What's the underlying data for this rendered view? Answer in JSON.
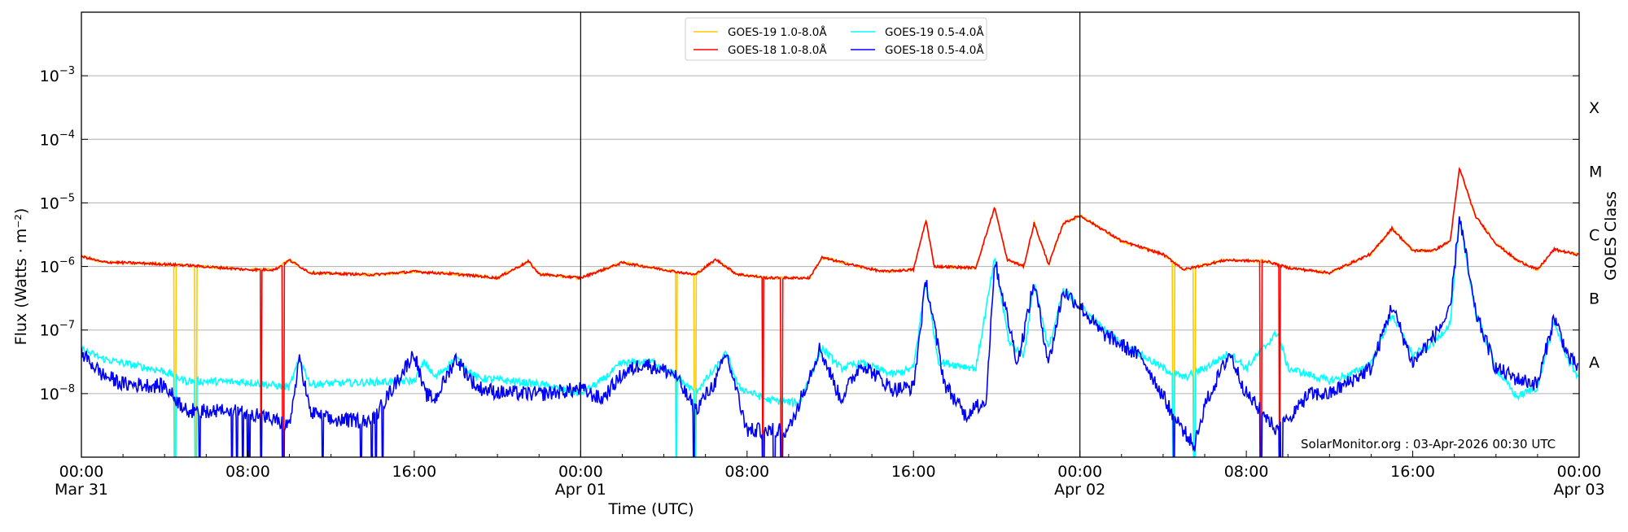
{
  "chart_data": {
    "type": "line",
    "xlabel": "Time (UTC)",
    "ylabel": "Flux (Watts · m⁻²)",
    "ylabel_right": "GOES Class",
    "xlim_hours": [
      0,
      72
    ],
    "ylim": [
      1e-09,
      0.01
    ],
    "yscale": "log",
    "grid": "horizontal",
    "legend_placement": "top-center",
    "x_ticks": [
      {
        "hour": 0,
        "label": "00:00",
        "sublabel": "Mar 31"
      },
      {
        "hour": 8,
        "label": "08:00",
        "sublabel": ""
      },
      {
        "hour": 16,
        "label": "16:00",
        "sublabel": ""
      },
      {
        "hour": 24,
        "label": "00:00",
        "sublabel": "Apr 01"
      },
      {
        "hour": 32,
        "label": "08:00",
        "sublabel": ""
      },
      {
        "hour": 40,
        "label": "16:00",
        "sublabel": ""
      },
      {
        "hour": 48,
        "label": "00:00",
        "sublabel": "Apr 02"
      },
      {
        "hour": 56,
        "label": "08:00",
        "sublabel": ""
      },
      {
        "hour": 64,
        "label": "16:00",
        "sublabel": ""
      },
      {
        "hour": 72,
        "label": "00:00",
        "sublabel": "Apr 03"
      }
    ],
    "y_ticks": [
      {
        "exp": -3,
        "base": "10",
        "sup": "−3"
      },
      {
        "exp": -4,
        "base": "10",
        "sup": "−4"
      },
      {
        "exp": -5,
        "base": "10",
        "sup": "−5"
      },
      {
        "exp": -6,
        "base": "10",
        "sup": "−6"
      },
      {
        "exp": -7,
        "base": "10",
        "sup": "−7"
      },
      {
        "exp": -8,
        "base": "10",
        "sup": "−8"
      }
    ],
    "day_boundaries_hours": [
      24,
      48
    ],
    "goes_classes": [
      {
        "label": "X",
        "log10_center": -3.5
      },
      {
        "label": "M",
        "log10_center": -4.5
      },
      {
        "label": "C",
        "log10_center": -5.5
      },
      {
        "label": "B",
        "log10_center": -6.5
      },
      {
        "label": "A",
        "log10_center": -7.5
      }
    ],
    "annotation": "SolarMonitor.org : 03-Apr-2026 00:30 UTC",
    "series": [
      {
        "name": "GOES-19 1.0-8.0Å",
        "color": "#ffc800",
        "noise": 0.02,
        "ref": "red_points",
        "gaps_hours": [
          [
            4.5,
            5.5
          ],
          [
            28.6,
            29.5
          ],
          [
            52.5,
            53.5
          ]
        ]
      },
      {
        "name": "GOES-19 0.5-4.0Å",
        "color": "#00ffff",
        "noise": 0.06,
        "gaps_hours": [
          [
            4.5,
            5.5
          ],
          [
            28.6,
            29.5
          ],
          [
            52.5,
            53.5
          ]
        ],
        "points_log10": [
          [
            0,
            -7.3
          ],
          [
            1,
            -7.45
          ],
          [
            2,
            -7.52
          ],
          [
            4,
            -7.65
          ],
          [
            5,
            -7.8
          ],
          [
            8,
            -7.82
          ],
          [
            10,
            -7.9
          ],
          [
            10.5,
            -7.44
          ],
          [
            11,
            -7.85
          ],
          [
            14,
            -7.82
          ],
          [
            16,
            -7.8
          ],
          [
            16.5,
            -7.5
          ],
          [
            17,
            -7.75
          ],
          [
            18,
            -7.44
          ],
          [
            19,
            -7.75
          ],
          [
            22,
            -7.85
          ],
          [
            24,
            -8.0
          ],
          [
            25,
            -7.8
          ],
          [
            26,
            -7.52
          ],
          [
            27.5,
            -7.5
          ],
          [
            28.5,
            -7.7
          ],
          [
            29.5,
            -7.98
          ],
          [
            30.5,
            -7.6
          ],
          [
            31,
            -7.36
          ],
          [
            31.6,
            -7.9
          ],
          [
            33,
            -8.1
          ],
          [
            34.5,
            -8.15
          ],
          [
            35.6,
            -7.28
          ],
          [
            36.5,
            -7.6
          ],
          [
            37.5,
            -7.52
          ],
          [
            39,
            -7.7
          ],
          [
            40,
            -7.6
          ],
          [
            40.6,
            -6.22
          ],
          [
            41.2,
            -7.5
          ],
          [
            43,
            -7.6
          ],
          [
            43.9,
            -5.89
          ],
          [
            44.6,
            -7.2
          ],
          [
            45.3,
            -7.4
          ],
          [
            45.8,
            -6.25
          ],
          [
            46.5,
            -7.3
          ],
          [
            47.2,
            -6.38
          ],
          [
            48,
            -6.62
          ],
          [
            49,
            -6.95
          ],
          [
            50,
            -7.2
          ],
          [
            51,
            -7.4
          ],
          [
            52,
            -7.6
          ],
          [
            53,
            -7.75
          ],
          [
            54,
            -7.6
          ],
          [
            55.2,
            -7.36
          ],
          [
            56,
            -7.6
          ],
          [
            57.5,
            -7.03
          ],
          [
            58,
            -7.6
          ],
          [
            60,
            -7.8
          ],
          [
            61,
            -7.7
          ],
          [
            62,
            -7.52
          ],
          [
            63,
            -6.75
          ],
          [
            64,
            -7.4
          ],
          [
            65,
            -7.2
          ],
          [
            65.8,
            -6.9
          ],
          [
            66.25,
            -5.24
          ],
          [
            67,
            -6.7
          ],
          [
            68,
            -7.6
          ],
          [
            69,
            -8.05
          ],
          [
            70,
            -7.9
          ],
          [
            70.8,
            -6.87
          ],
          [
            71.5,
            -7.5
          ],
          [
            72,
            -7.75
          ]
        ]
      },
      {
        "name": "GOES-18 1.0-8.0Å",
        "color": "#ff0000",
        "noise": 0.02,
        "gaps_hours": [
          [
            8.64,
            9.7
          ],
          [
            32.75,
            33.65
          ],
          [
            56.7,
            57.6
          ]
        ],
        "points_log10": [
          [
            0,
            -5.84
          ],
          [
            1,
            -5.93
          ],
          [
            3,
            -5.95
          ],
          [
            5,
            -5.98
          ],
          [
            8,
            -6.05
          ],
          [
            9.3,
            -6.05
          ],
          [
            10,
            -5.9
          ],
          [
            11,
            -6.1
          ],
          [
            14,
            -6.13
          ],
          [
            16,
            -6.08
          ],
          [
            18,
            -6.12
          ],
          [
            20,
            -6.18
          ],
          [
            21.5,
            -5.92
          ],
          [
            22,
            -6.12
          ],
          [
            24,
            -6.18
          ],
          [
            26,
            -5.94
          ],
          [
            28,
            -6.05
          ],
          [
            29.5,
            -6.13
          ],
          [
            30.5,
            -5.89
          ],
          [
            31.5,
            -6.12
          ],
          [
            33,
            -6.18
          ],
          [
            35,
            -6.18
          ],
          [
            35.6,
            -5.86
          ],
          [
            37,
            -5.97
          ],
          [
            38.5,
            -6.08
          ],
          [
            40,
            -6.05
          ],
          [
            40.6,
            -5.27
          ],
          [
            41,
            -6.0
          ],
          [
            43,
            -6.02
          ],
          [
            43.9,
            -5.07
          ],
          [
            44.5,
            -5.89
          ],
          [
            45.3,
            -6.0
          ],
          [
            45.8,
            -5.32
          ],
          [
            46.5,
            -5.97
          ],
          [
            47.2,
            -5.32
          ],
          [
            48,
            -5.2
          ],
          [
            49,
            -5.4
          ],
          [
            50,
            -5.6
          ],
          [
            52,
            -5.81
          ],
          [
            53,
            -6.05
          ],
          [
            55,
            -5.9
          ],
          [
            57,
            -5.92
          ],
          [
            58,
            -6.02
          ],
          [
            60,
            -6.1
          ],
          [
            62,
            -5.8
          ],
          [
            63,
            -5.4
          ],
          [
            64,
            -5.75
          ],
          [
            65,
            -5.75
          ],
          [
            65.8,
            -5.6
          ],
          [
            66.25,
            -4.45
          ],
          [
            67,
            -5.2
          ],
          [
            68,
            -5.64
          ],
          [
            69,
            -5.9
          ],
          [
            70,
            -6.05
          ],
          [
            70.8,
            -5.73
          ],
          [
            72,
            -5.82
          ]
        ]
      },
      {
        "name": "GOES-18 0.5-4.0Å",
        "color": "#0000ff",
        "noise": 0.12,
        "gaps_hours": [
          [
            8.64,
            9.7
          ],
          [
            32.75,
            33.65
          ],
          [
            56.7,
            57.6
          ]
        ],
        "points_log10": [
          [
            0,
            -7.36
          ],
          [
            1,
            -7.7
          ],
          [
            2,
            -7.85
          ],
          [
            4,
            -7.88
          ],
          [
            5,
            -8.26
          ],
          [
            8,
            -8.3
          ],
          [
            8.5,
            -8.34
          ],
          [
            10,
            -8.5
          ],
          [
            10.5,
            -7.44
          ],
          [
            11,
            -8.3
          ],
          [
            12,
            -8.42
          ],
          [
            14,
            -8.42
          ],
          [
            16,
            -7.36
          ],
          [
            16.5,
            -8.0
          ],
          [
            17,
            -8.09
          ],
          [
            18,
            -7.44
          ],
          [
            19,
            -7.9
          ],
          [
            20,
            -7.98
          ],
          [
            22,
            -8.01
          ],
          [
            24,
            -7.93
          ],
          [
            25,
            -8.09
          ],
          [
            26,
            -7.7
          ],
          [
            27,
            -7.52
          ],
          [
            28.5,
            -7.69
          ],
          [
            29.5,
            -8.26
          ],
          [
            30.5,
            -7.8
          ],
          [
            31,
            -7.36
          ],
          [
            32,
            -8.58
          ],
          [
            34,
            -8.58
          ],
          [
            35.5,
            -7.28
          ],
          [
            36.5,
            -8.09
          ],
          [
            37.5,
            -7.52
          ],
          [
            39,
            -7.93
          ],
          [
            40,
            -7.9
          ],
          [
            40.6,
            -6.22
          ],
          [
            41.5,
            -7.85
          ],
          [
            42.5,
            -8.34
          ],
          [
            43.5,
            -8.09
          ],
          [
            43.9,
            -5.89
          ],
          [
            45,
            -7.52
          ],
          [
            45.8,
            -6.25
          ],
          [
            46.5,
            -7.52
          ],
          [
            47.2,
            -6.38
          ],
          [
            48,
            -6.62
          ],
          [
            49,
            -7.03
          ],
          [
            51,
            -7.44
          ],
          [
            52.5,
            -8.34
          ],
          [
            53.5,
            -8.83
          ],
          [
            54,
            -8.18
          ],
          [
            55.2,
            -7.36
          ],
          [
            56,
            -8.0
          ],
          [
            57.5,
            -8.58
          ],
          [
            59,
            -8.01
          ],
          [
            60,
            -8.01
          ],
          [
            62,
            -7.6
          ],
          [
            63,
            -6.62
          ],
          [
            64,
            -7.52
          ],
          [
            65,
            -7.1
          ],
          [
            65.8,
            -6.71
          ],
          [
            66.25,
            -5.2
          ],
          [
            67,
            -6.71
          ],
          [
            68,
            -7.6
          ],
          [
            69,
            -7.77
          ],
          [
            70,
            -7.85
          ],
          [
            70.8,
            -6.79
          ],
          [
            71.5,
            -7.44
          ],
          [
            72,
            -7.6
          ]
        ]
      }
    ]
  }
}
